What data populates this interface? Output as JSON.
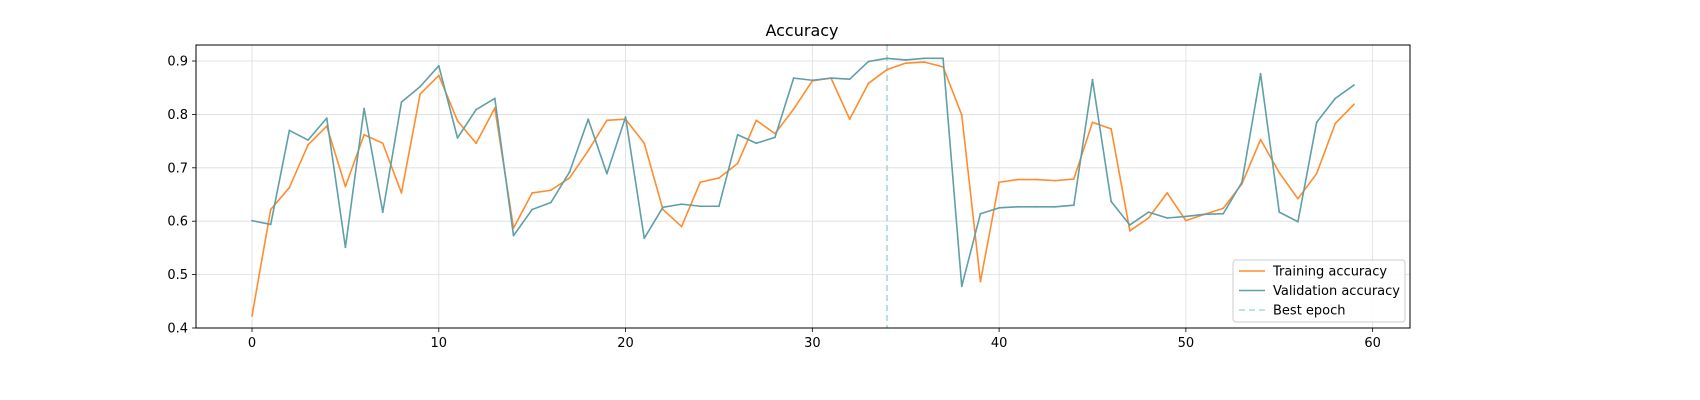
{
  "chart_data": {
    "type": "line",
    "title": "Accuracy",
    "xlabel": "",
    "ylabel": "",
    "xlim": [
      -3,
      62
    ],
    "ylim": [
      0.4,
      0.93
    ],
    "x_ticks": [
      0,
      10,
      20,
      30,
      40,
      50,
      60
    ],
    "y_ticks": [
      0.4,
      0.5,
      0.6,
      0.7,
      0.8,
      0.9
    ],
    "x_tick_labels": [
      "0",
      "10",
      "20",
      "30",
      "40",
      "50",
      "60"
    ],
    "y_tick_labels": [
      "0.4",
      "0.5",
      "0.6",
      "0.7",
      "0.8",
      "0.9"
    ],
    "grid": true,
    "legend_position": "lower-right",
    "series": [
      {
        "name": "Training accuracy",
        "color": "#ff8c2e",
        "values": [
          0.423,
          0.622,
          0.663,
          0.743,
          0.778,
          0.665,
          0.762,
          0.746,
          0.653,
          0.838,
          0.873,
          0.788,
          0.746,
          0.812,
          0.587,
          0.653,
          0.658,
          0.681,
          0.732,
          0.789,
          0.791,
          0.746,
          0.622,
          0.59,
          0.673,
          0.681,
          0.708,
          0.789,
          0.764,
          0.81,
          0.863,
          0.868,
          0.791,
          0.858,
          0.884,
          0.896,
          0.898,
          0.889,
          0.799,
          0.487,
          0.673,
          0.678,
          0.678,
          0.676,
          0.679,
          0.785,
          0.773,
          0.582,
          0.606,
          0.653,
          0.601,
          0.613,
          0.624,
          0.67,
          0.753,
          0.691,
          0.642,
          0.689,
          0.783,
          0.819
        ]
      },
      {
        "name": "Validation accuracy",
        "color": "#5f9fa8",
        "values": [
          0.601,
          0.594,
          0.77,
          0.752,
          0.793,
          0.551,
          0.811,
          0.617,
          0.823,
          0.852,
          0.891,
          0.756,
          0.809,
          0.83,
          0.573,
          0.622,
          0.635,
          0.692,
          0.791,
          0.689,
          0.795,
          0.568,
          0.626,
          0.632,
          0.628,
          0.628,
          0.762,
          0.746,
          0.757,
          0.868,
          0.864,
          0.868,
          0.866,
          0.899,
          0.905,
          0.902,
          0.905,
          0.905,
          0.478,
          0.614,
          0.625,
          0.627,
          0.627,
          0.627,
          0.63,
          0.865,
          0.637,
          0.593,
          0.617,
          0.606,
          0.609,
          0.613,
          0.614,
          0.673,
          0.876,
          0.617,
          0.599,
          0.785,
          0.83,
          0.855
        ]
      }
    ],
    "vline": {
      "x": 34,
      "name": "Best epoch",
      "color": "#a8d8d8",
      "style": "dashed"
    }
  }
}
